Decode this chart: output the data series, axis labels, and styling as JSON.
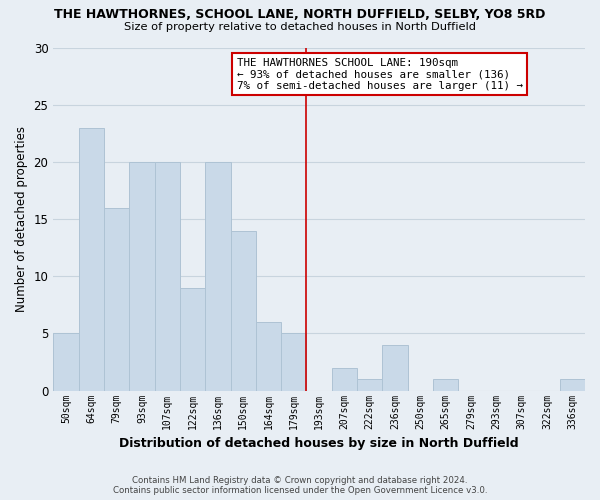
{
  "title": "THE HAWTHORNES, SCHOOL LANE, NORTH DUFFIELD, SELBY, YO8 5RD",
  "subtitle": "Size of property relative to detached houses in North Duffield",
  "xlabel": "Distribution of detached houses by size in North Duffield",
  "ylabel": "Number of detached properties",
  "bar_labels": [
    "50sqm",
    "64sqm",
    "79sqm",
    "93sqm",
    "107sqm",
    "122sqm",
    "136sqm",
    "150sqm",
    "164sqm",
    "179sqm",
    "193sqm",
    "207sqm",
    "222sqm",
    "236sqm",
    "250sqm",
    "265sqm",
    "279sqm",
    "293sqm",
    "307sqm",
    "322sqm",
    "336sqm"
  ],
  "bar_values": [
    5,
    23,
    16,
    20,
    20,
    9,
    20,
    14,
    6,
    5,
    0,
    2,
    1,
    4,
    0,
    1,
    0,
    0,
    0,
    0,
    1
  ],
  "bar_color": "#c9d9e8",
  "bar_edge_color": "#aec3d4",
  "reference_line_color": "#cc0000",
  "annotation_line1": "THE HAWTHORNES SCHOOL LANE: 190sqm",
  "annotation_line2": "← 93% of detached houses are smaller (136)",
  "annotation_line3": "7% of semi-detached houses are larger (11) →",
  "annotation_box_color": "white",
  "annotation_box_edge_color": "#cc0000",
  "ylim": [
    0,
    30
  ],
  "yticks": [
    0,
    5,
    10,
    15,
    20,
    25,
    30
  ],
  "footer_line1": "Contains HM Land Registry data © Crown copyright and database right 2024.",
  "footer_line2": "Contains public sector information licensed under the Open Government Licence v3.0.",
  "background_color": "#e8eef4",
  "grid_color": "#c8d4de",
  "ref_line_index": 9.5
}
